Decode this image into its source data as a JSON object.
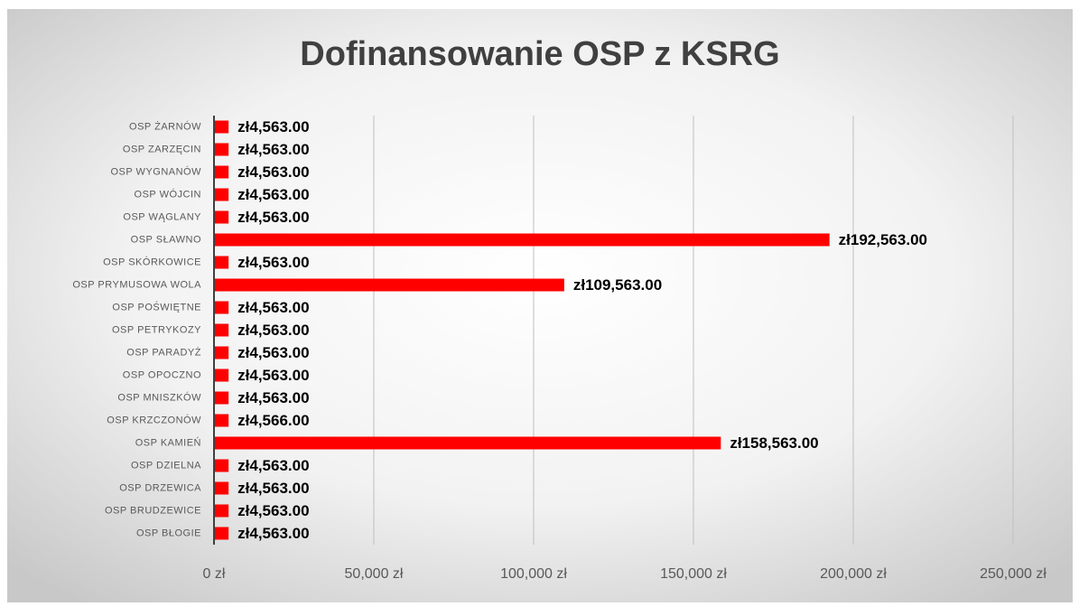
{
  "chart_data": {
    "type": "bar",
    "orientation": "horizontal",
    "title": "Dofinansowanie OSP z KSRG",
    "categories": [
      "OSP ŻARNÓW",
      "OSP ZARZĘCIN",
      "OSP WYGNANÓW",
      "OSP WÓJCIN",
      "OSP WĄGLANY",
      "OSP SŁAWNO",
      "OSP SKÓRKOWICE",
      "OSP PRYMUSOWA WOLA",
      "OSP POŚWIĘTNE",
      "OSP PETRYKOZY",
      "OSP PARADYŻ",
      "OSP OPOCZNO",
      "OSP MNISZKÓW",
      "OSP KRZCZONÓW",
      "OSP KAMIEŃ",
      "OSP DZIELNA",
      "OSP DRZEWICA",
      "OSP BRUDZEWICE",
      "OSP BŁOGIE"
    ],
    "values": [
      4563,
      4563,
      4563,
      4563,
      4563,
      192563,
      4563,
      109563,
      4563,
      4563,
      4563,
      4563,
      4563,
      4566,
      158563,
      4563,
      4563,
      4563,
      4563
    ],
    "value_labels": [
      "zł4,563.00",
      "zł4,563.00",
      "zł4,563.00",
      "zł4,563.00",
      "zł4,563.00",
      "zł192,563.00",
      "zł4,563.00",
      "zł109,563.00",
      "zł4,563.00",
      "zł4,563.00",
      "zł4,563.00",
      "zł4,563.00",
      "zł4,563.00",
      "zł4,566.00",
      "zł158,563.00",
      "zł4,563.00",
      "zł4,563.00",
      "zł4,563.00",
      "zł4,563.00"
    ],
    "color": "#ff0000",
    "xlim": [
      0,
      250000
    ],
    "xticks": [
      {
        "value": 0,
        "label": "0 zł"
      },
      {
        "value": 50000,
        "label": "50,000 zł"
      },
      {
        "value": 100000,
        "label": "100,000 zł"
      },
      {
        "value": 150000,
        "label": "150,000 zł"
      },
      {
        "value": 200000,
        "label": "200,000 zł"
      },
      {
        "value": 250000,
        "label": "250,000 zł"
      }
    ],
    "grid": true
  }
}
